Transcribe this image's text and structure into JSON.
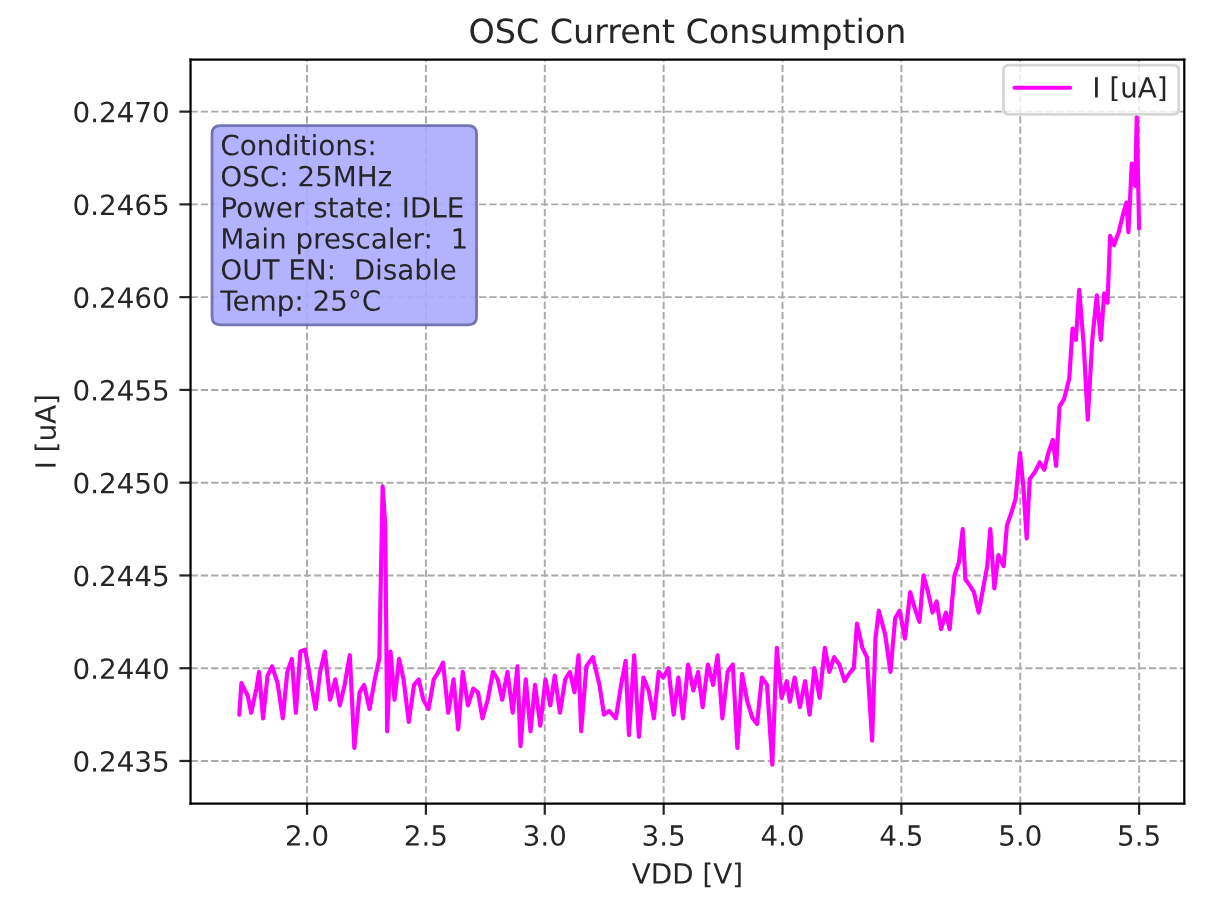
{
  "chart_data": {
    "type": "line",
    "title": "OSC Current Consumption",
    "xlabel": "VDD [V]",
    "ylabel": "I [uA]",
    "annotations": [
      "Conditions:\nOSC: 25MHz\nPower state: IDLE\nMain prescaler:  1\nOUT EN:  Disable\nTemp: 25°C"
    ],
    "xlim": [
      1.51,
      5.69
    ],
    "ylim": [
      0.24327,
      0.24728
    ],
    "xticks": [
      {
        "value": 2.0,
        "label": "2.0"
      },
      {
        "value": 2.5,
        "label": "2.5"
      },
      {
        "value": 3.0,
        "label": "3.0"
      },
      {
        "value": 3.5,
        "label": "3.5"
      },
      {
        "value": 4.0,
        "label": "4.0"
      },
      {
        "value": 4.5,
        "label": "4.5"
      },
      {
        "value": 5.0,
        "label": "5.0"
      },
      {
        "value": 5.5,
        "label": "5.5"
      }
    ],
    "yticks": [
      0.2435,
      {
        "value": 0.244,
        "label": "0.2440"
      },
      0.2445,
      {
        "value": 0.245,
        "label": "0.2450"
      },
      0.2455,
      {
        "value": 0.246,
        "label": "0.2460"
      },
      0.2465,
      {
        "value": 0.247,
        "label": "0.2470"
      }
    ],
    "grid": true,
    "legend": "top right",
    "marker": "none",
    "line_style": "solid",
    "series": [
      {
        "name": "I [uA]",
        "color": "#ff00ff",
        "x": [
          1.715,
          1.724,
          1.751,
          1.765,
          1.787,
          1.798,
          1.815,
          1.834,
          1.853,
          1.876,
          1.898,
          1.917,
          1.936,
          1.953,
          1.972,
          1.992,
          2.014,
          2.036,
          2.055,
          2.075,
          2.097,
          2.119,
          2.138,
          2.158,
          2.18,
          2.199,
          2.221,
          2.24,
          2.263,
          2.285,
          2.304,
          2.318,
          2.329,
          2.337,
          2.351,
          2.368,
          2.387,
          2.406,
          2.428,
          2.45,
          2.47,
          2.489,
          2.511,
          2.533,
          2.553,
          2.572,
          2.594,
          2.616,
          2.636,
          2.655,
          2.677,
          2.699,
          2.719,
          2.738,
          2.76,
          2.782,
          2.802,
          2.821,
          2.843,
          2.865,
          2.885,
          2.898,
          2.92,
          2.94,
          2.959,
          2.981,
          3.003,
          3.023,
          3.042,
          3.064,
          3.086,
          3.106,
          3.125,
          3.142,
          3.153,
          3.175,
          3.202,
          3.23,
          3.249,
          3.271,
          3.299,
          3.321,
          3.34,
          3.354,
          3.376,
          3.396,
          3.415,
          3.437,
          3.459,
          3.479,
          3.498,
          3.52,
          3.542,
          3.562,
          3.581,
          3.603,
          3.625,
          3.645,
          3.664,
          3.686,
          3.708,
          3.727,
          3.747,
          3.769,
          3.791,
          3.81,
          3.83,
          3.852,
          3.874,
          3.893,
          3.913,
          3.935,
          3.957,
          3.976,
          3.996,
          4.018,
          4.031,
          4.051,
          4.073,
          4.095,
          4.114,
          4.134,
          4.156,
          4.178,
          4.197,
          4.217,
          4.239,
          4.261,
          4.28,
          4.3,
          4.313,
          4.336,
          4.355,
          4.377,
          4.391,
          4.405,
          4.432,
          4.454,
          4.474,
          4.493,
          4.515,
          4.537,
          4.557,
          4.576,
          4.593,
          4.612,
          4.631,
          4.648,
          4.667,
          4.687,
          4.703,
          4.723,
          4.742,
          4.758,
          4.769,
          4.786,
          4.805,
          4.825,
          4.841,
          4.861,
          4.874,
          4.891,
          4.908,
          4.93,
          4.944,
          4.963,
          4.98,
          4.999,
          5.013,
          5.027,
          5.04,
          5.063,
          5.082,
          5.101,
          5.118,
          5.137,
          5.151,
          5.165,
          5.184,
          5.206,
          5.22,
          5.234,
          5.248,
          5.267,
          5.284,
          5.303,
          5.322,
          5.339,
          5.353,
          5.367,
          5.378,
          5.394,
          5.414,
          5.433,
          5.447,
          5.455,
          5.469,
          5.483,
          5.49,
          5.5
        ],
        "values": [
          0.24375,
          0.24392,
          0.24385,
          0.24376,
          0.24389,
          0.24398,
          0.24373,
          0.24396,
          0.24401,
          0.24392,
          0.24373,
          0.24398,
          0.24405,
          0.24376,
          0.24409,
          0.2441,
          0.24394,
          0.24378,
          0.24398,
          0.24409,
          0.24383,
          0.24394,
          0.2438,
          0.24391,
          0.24407,
          0.24357,
          0.24387,
          0.24391,
          0.24378,
          0.24394,
          0.24405,
          0.24498,
          0.24477,
          0.24366,
          0.24409,
          0.24383,
          0.24405,
          0.24394,
          0.24371,
          0.24391,
          0.24394,
          0.24383,
          0.24378,
          0.24394,
          0.24398,
          0.24403,
          0.24376,
          0.24394,
          0.24367,
          0.24398,
          0.2438,
          0.24389,
          0.24387,
          0.24373,
          0.24383,
          0.24398,
          0.24394,
          0.24383,
          0.24398,
          0.24376,
          0.24401,
          0.24358,
          0.24394,
          0.24366,
          0.24391,
          0.24369,
          0.24394,
          0.2438,
          0.24396,
          0.24376,
          0.24394,
          0.24398,
          0.24387,
          0.24407,
          0.24366,
          0.24401,
          0.24406,
          0.24391,
          0.24375,
          0.24377,
          0.24373,
          0.24391,
          0.24404,
          0.24364,
          0.24407,
          0.24363,
          0.24395,
          0.24388,
          0.24373,
          0.24398,
          0.24395,
          0.244,
          0.24375,
          0.24395,
          0.24373,
          0.24402,
          0.24388,
          0.24398,
          0.24379,
          0.24402,
          0.24391,
          0.24407,
          0.24373,
          0.24398,
          0.24402,
          0.24357,
          0.24397,
          0.24382,
          0.24373,
          0.2437,
          0.24395,
          0.24391,
          0.24348,
          0.24411,
          0.24384,
          0.24393,
          0.24382,
          0.24395,
          0.24379,
          0.24393,
          0.24375,
          0.244,
          0.24384,
          0.24411,
          0.24398,
          0.24406,
          0.24402,
          0.24393,
          0.24397,
          0.244,
          0.24424,
          0.24411,
          0.24406,
          0.24361,
          0.24416,
          0.24431,
          0.24418,
          0.24398,
          0.24427,
          0.24431,
          0.24416,
          0.24441,
          0.24432,
          0.24425,
          0.2445,
          0.24441,
          0.2443,
          0.24436,
          0.24421,
          0.2443,
          0.24421,
          0.2445,
          0.24457,
          0.24475,
          0.24448,
          0.24445,
          0.24441,
          0.2443,
          0.24441,
          0.24455,
          0.24475,
          0.24443,
          0.24461,
          0.24455,
          0.24477,
          0.24484,
          0.24491,
          0.24516,
          0.24498,
          0.2447,
          0.24502,
          0.24506,
          0.24511,
          0.24507,
          0.24516,
          0.24523,
          0.24509,
          0.24541,
          0.24545,
          0.24556,
          0.24583,
          0.24577,
          0.24604,
          0.24574,
          0.24534,
          0.24577,
          0.24601,
          0.24577,
          0.24602,
          0.24597,
          0.24633,
          0.24628,
          0.24635,
          0.24645,
          0.24651,
          0.24635,
          0.24672,
          0.2466,
          0.24697,
          0.24637
        ]
      }
    ]
  }
}
